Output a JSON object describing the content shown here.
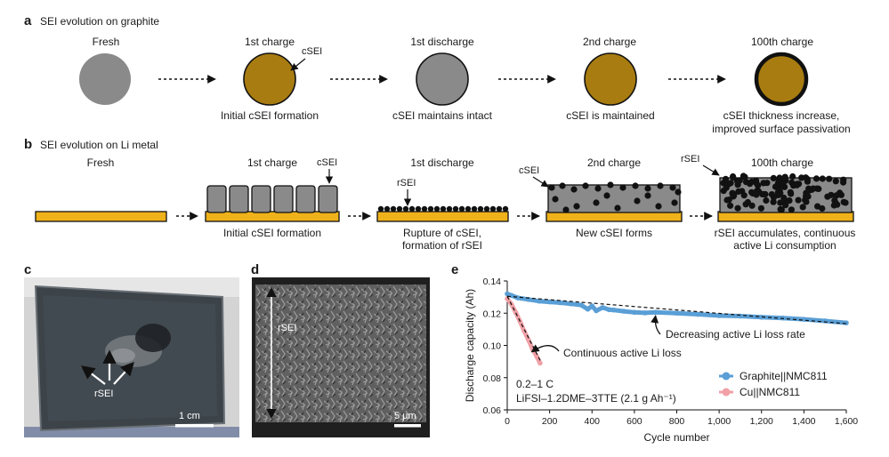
{
  "panels": {
    "a": {
      "letter": "a",
      "title": "SEI evolution on graphite",
      "stages": [
        {
          "header": "Fresh",
          "caption": ""
        },
        {
          "header": "1st charge",
          "caption": "Initial cSEI formation"
        },
        {
          "header": "1st discharge",
          "caption": "cSEI maintains intact"
        },
        {
          "header": "2nd charge",
          "caption": "cSEI is maintained"
        },
        {
          "header": "100th charge",
          "caption": "cSEI thickness increase,",
          "caption2": "improved surface passivation"
        }
      ],
      "annotation": "cSEI"
    },
    "b": {
      "letter": "b",
      "title": "SEI evolution on Li metal",
      "stages": [
        {
          "header": "Fresh",
          "caption": "",
          "caption2": ""
        },
        {
          "header": "1st charge",
          "caption": "Initial cSEI formation",
          "caption2": ""
        },
        {
          "header": "1st discharge",
          "caption": "Rupture of cSEI,",
          "caption2": "formation of rSEI"
        },
        {
          "header": "2nd charge",
          "caption": "New cSEI forms",
          "caption2": ""
        },
        {
          "header": "100th charge",
          "caption": "rSEI accumulates, continuous",
          "caption2": "active Li consumption"
        }
      ],
      "annotations": {
        "csei_1": "cSEI",
        "rsei_1": "rSEI",
        "csei_2": "cSEI",
        "rsei_2": "rSEI"
      }
    },
    "c": {
      "letter": "c",
      "label": "rSEI",
      "scale_bar": "1 cm"
    },
    "d": {
      "letter": "d",
      "label": "rSEI",
      "scale_bar": "5 μm"
    },
    "e": {
      "letter": "e"
    }
  },
  "colors": {
    "graphite": "#8a8a8a",
    "csei": "#a87c10",
    "li_metal": "#f0b21a",
    "graphite_series": "#5a9fd6",
    "cu_series": "#f0a0a6"
  },
  "chart_data": {
    "type": "line",
    "xlabel": "Cycle number",
    "ylabel": "Discharge capacity (Ah)",
    "xlim": [
      0,
      1600
    ],
    "ylim": [
      0.06,
      0.14
    ],
    "xticks": [
      0,
      200,
      400,
      600,
      800,
      1000,
      1200,
      1400,
      1600
    ],
    "xtick_labels": [
      "0",
      "200",
      "400",
      "600",
      "800",
      "1,000",
      "1,200",
      "1,400",
      "1,600"
    ],
    "yticks": [
      0.06,
      0.08,
      0.1,
      0.12,
      0.14
    ],
    "ytick_labels": [
      "0.06",
      "0.08",
      "0.10",
      "0.12",
      "0.14"
    ],
    "legend_position": "bottom-right",
    "series": [
      {
        "name": "Graphite||NMC811",
        "color": "#5a9fd6",
        "x": [
          0,
          20,
          50,
          100,
          150,
          200,
          250,
          300,
          350,
          380,
          400,
          420,
          450,
          480,
          500,
          550,
          600,
          650,
          700,
          800,
          900,
          1000,
          1100,
          1200,
          1300,
          1400,
          1500,
          1600
        ],
        "y": [
          0.132,
          0.131,
          0.1295,
          0.1285,
          0.1275,
          0.127,
          0.1265,
          0.1258,
          0.125,
          0.1225,
          0.1245,
          0.1215,
          0.1235,
          0.1222,
          0.122,
          0.1212,
          0.1205,
          0.1202,
          0.1205,
          0.12,
          0.1193,
          0.1185,
          0.1182,
          0.1175,
          0.117,
          0.1162,
          0.1152,
          0.114
        ]
      },
      {
        "name": "Cu||NMC811",
        "color": "#f0a0a6",
        "x": [
          0,
          20,
          40,
          60,
          80,
          100,
          120,
          140,
          155
        ],
        "y": [
          0.129,
          0.1255,
          0.1205,
          0.115,
          0.109,
          0.1035,
          0.0975,
          0.093,
          0.089
        ]
      }
    ],
    "fits": [
      {
        "x": [
          0,
          1600
        ],
        "y": [
          0.1305,
          0.1135
        ]
      },
      {
        "x": [
          0,
          160
        ],
        "y": [
          0.1305,
          0.0895
        ]
      }
    ],
    "annotations": {
      "continuous": "Continuous active Li loss",
      "decreasing": "Decreasing active Li loss rate",
      "condition1": "0.2–1 C",
      "condition2": "LiFSI–1.2DME–3TTE (2.1 g Ah⁻¹)"
    }
  }
}
